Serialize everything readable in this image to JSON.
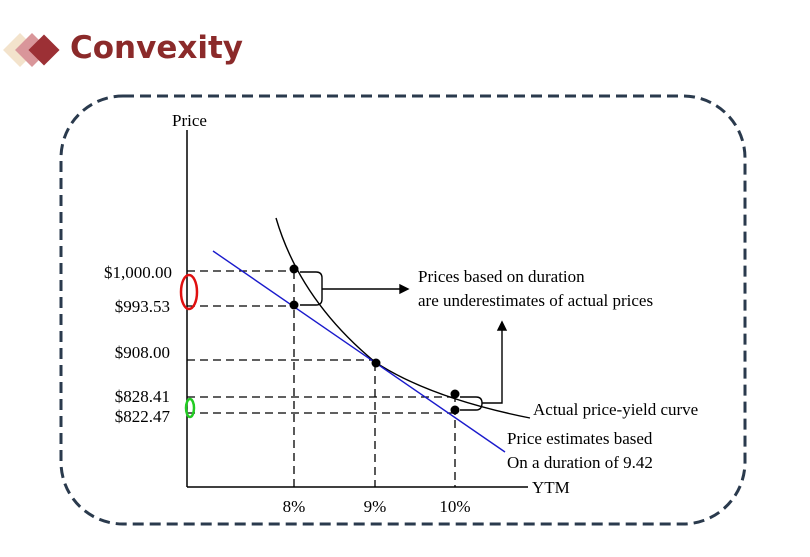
{
  "slide": {
    "title": "Convexity"
  },
  "diagram": {
    "y_axis_label": "Price",
    "x_axis_label": "YTM",
    "y_ticks": [
      "$1,000.00",
      "$993.53",
      "$908.00",
      "$828.41",
      "$822.47"
    ],
    "x_ticks": [
      "8%",
      "9%",
      "10%"
    ],
    "annotation_underestimate": [
      "Prices based on duration",
      "are underestimates of actual prices"
    ],
    "curve_label": "Actual price-yield curve",
    "line_label": [
      "Price estimates based",
      "On a duration of 9.42"
    ],
    "colors": {
      "title": "#8b2a2a",
      "estimate_line": "#1a1acc",
      "highlight_red": "#e01010",
      "highlight_green": "#22cc22",
      "border": "#2a3a4d"
    }
  }
}
